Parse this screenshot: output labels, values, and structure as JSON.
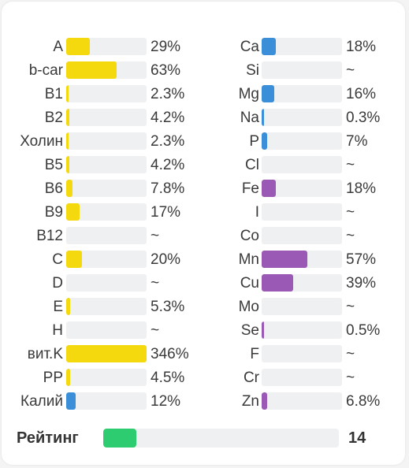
{
  "colors": {
    "yellow": "#f4d90e",
    "blue": "#3b8fd8",
    "purple": "#9b59b6",
    "green": "#2ecc71",
    "track": "#eef0f2"
  },
  "left_column": [
    {
      "label": "A",
      "value": "29%",
      "fill": 0.29,
      "color": "yellow"
    },
    {
      "label": "b-car",
      "value": "63%",
      "fill": 0.63,
      "color": "yellow"
    },
    {
      "label": "B1",
      "value": "2.3%",
      "fill": 0.023,
      "color": "yellow"
    },
    {
      "label": "B2",
      "value": "4.2%",
      "fill": 0.042,
      "color": "yellow"
    },
    {
      "label": "Холин",
      "value": "2.3%",
      "fill": 0.023,
      "color": "yellow"
    },
    {
      "label": "B5",
      "value": "4.2%",
      "fill": 0.042,
      "color": "yellow"
    },
    {
      "label": "B6",
      "value": "7.8%",
      "fill": 0.078,
      "color": "yellow"
    },
    {
      "label": "B9",
      "value": "17%",
      "fill": 0.17,
      "color": "yellow"
    },
    {
      "label": "B12",
      "value": "~",
      "fill": 0,
      "color": "yellow"
    },
    {
      "label": "C",
      "value": "20%",
      "fill": 0.2,
      "color": "yellow"
    },
    {
      "label": "D",
      "value": "~",
      "fill": 0,
      "color": "yellow"
    },
    {
      "label": "E",
      "value": "5.3%",
      "fill": 0.053,
      "color": "yellow"
    },
    {
      "label": "H",
      "value": "~",
      "fill": 0,
      "color": "yellow"
    },
    {
      "label": "вит.K",
      "value": "346%",
      "fill": 1.0,
      "color": "yellow"
    },
    {
      "label": "PP",
      "value": "4.5%",
      "fill": 0.045,
      "color": "yellow"
    },
    {
      "label": "Калий",
      "value": "12%",
      "fill": 0.12,
      "color": "blue"
    }
  ],
  "right_column": [
    {
      "label": "Ca",
      "value": "18%",
      "fill": 0.18,
      "color": "blue"
    },
    {
      "label": "Si",
      "value": "~",
      "fill": 0,
      "color": "blue"
    },
    {
      "label": "Mg",
      "value": "16%",
      "fill": 0.16,
      "color": "blue"
    },
    {
      "label": "Na",
      "value": "0.3%",
      "fill": 0.003,
      "color": "blue"
    },
    {
      "label": "P",
      "value": "7%",
      "fill": 0.07,
      "color": "blue"
    },
    {
      "label": "Cl",
      "value": "~",
      "fill": 0,
      "color": "blue"
    },
    {
      "label": "Fe",
      "value": "18%",
      "fill": 0.18,
      "color": "purple"
    },
    {
      "label": "I",
      "value": "~",
      "fill": 0,
      "color": "purple"
    },
    {
      "label": "Co",
      "value": "~",
      "fill": 0,
      "color": "purple"
    },
    {
      "label": "Mn",
      "value": "57%",
      "fill": 0.57,
      "color": "purple"
    },
    {
      "label": "Cu",
      "value": "39%",
      "fill": 0.39,
      "color": "purple"
    },
    {
      "label": "Mo",
      "value": "~",
      "fill": 0,
      "color": "purple"
    },
    {
      "label": "Se",
      "value": "0.5%",
      "fill": 0.005,
      "color": "purple"
    },
    {
      "label": "F",
      "value": "~",
      "fill": 0,
      "color": "purple"
    },
    {
      "label": "Cr",
      "value": "~",
      "fill": 0,
      "color": "purple"
    },
    {
      "label": "Zn",
      "value": "6.8%",
      "fill": 0.068,
      "color": "purple"
    }
  ],
  "rating": {
    "label": "Рейтинг",
    "value": "14",
    "fill": 0.14,
    "color": "green"
  }
}
